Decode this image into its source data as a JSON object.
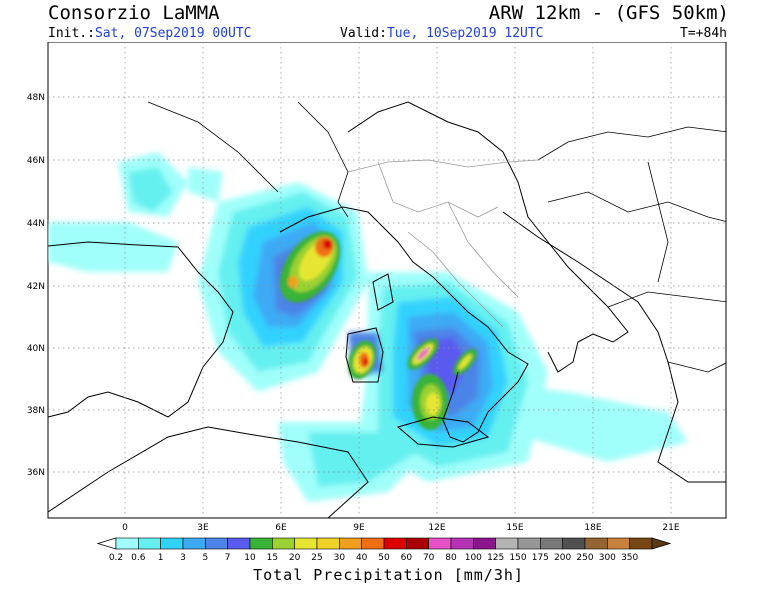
{
  "header": {
    "title_left": "Consorzio LaMMA",
    "title_right": "ARW 12km - (GFS 50km)",
    "init_label": "Init.:",
    "init_value": "Sat, 07Sep2019 00UTC",
    "valid_label": "Valid:",
    "valid_value": "Tue, 10Sep2019 12UTC",
    "forecast_hour": "T=+84h"
  },
  "map": {
    "lat_labels": [
      "48N",
      "46N",
      "44N",
      "42N",
      "40N",
      "38N",
      "36N"
    ],
    "lon_labels": [
      "0",
      "3E",
      "6E",
      "9E",
      "12E",
      "15E",
      "18E",
      "21E"
    ],
    "grid": true
  },
  "legend": {
    "title": "Total Precipitation [mm/3h]",
    "levels": [
      "0.2",
      "0.6",
      "1",
      "3",
      "5",
      "7",
      "10",
      "15",
      "20",
      "25",
      "30",
      "40",
      "50",
      "60",
      "70",
      "80",
      "100",
      "125",
      "150",
      "175",
      "200",
      "250",
      "300",
      "350"
    ],
    "colors": [
      "#a0fffa",
      "#65f0f0",
      "#32d2ff",
      "#3caaf5",
      "#4c84e8",
      "#5a5af0",
      "#37b437",
      "#9bd232",
      "#e6e632",
      "#f0d228",
      "#f0a01e",
      "#f06e14",
      "#dc0000",
      "#aa0000",
      "#e650c8",
      "#b432b4",
      "#8c148c",
      "#b4b4b4",
      "#969696",
      "#787878",
      "#505050",
      "#966432",
      "#c8823c",
      "#784614"
    ]
  }
}
